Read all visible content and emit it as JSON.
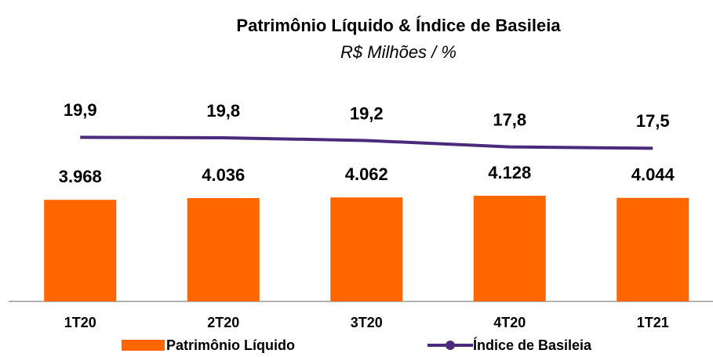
{
  "chart_data": {
    "type": "bar",
    "title": "Patrimônio Líquido & Índice de Basileia",
    "subtitle": "R$ Milhões / %",
    "categories": [
      "1T20",
      "2T20",
      "3T20",
      "4T20",
      "1T21"
    ],
    "series": [
      {
        "name": "Patrimônio Líquido",
        "type": "bar",
        "color": "#ff6600",
        "values": [
          3968,
          4036,
          4062,
          4128,
          4044
        ],
        "value_labels": [
          "3.968",
          "4.036",
          "4.062",
          "4.128",
          "4.044"
        ]
      },
      {
        "name": "Índice de Basileia",
        "type": "line",
        "axis": "y2",
        "color": "#4b2a7b",
        "values": [
          19.9,
          19.8,
          19.2,
          17.8,
          17.5
        ],
        "value_labels": [
          "19,9",
          "19,8",
          "19,2",
          "17,8",
          "17,5"
        ]
      }
    ],
    "ylim": [
      0,
      10000
    ],
    "y2lim": [
      -16,
      40
    ]
  }
}
